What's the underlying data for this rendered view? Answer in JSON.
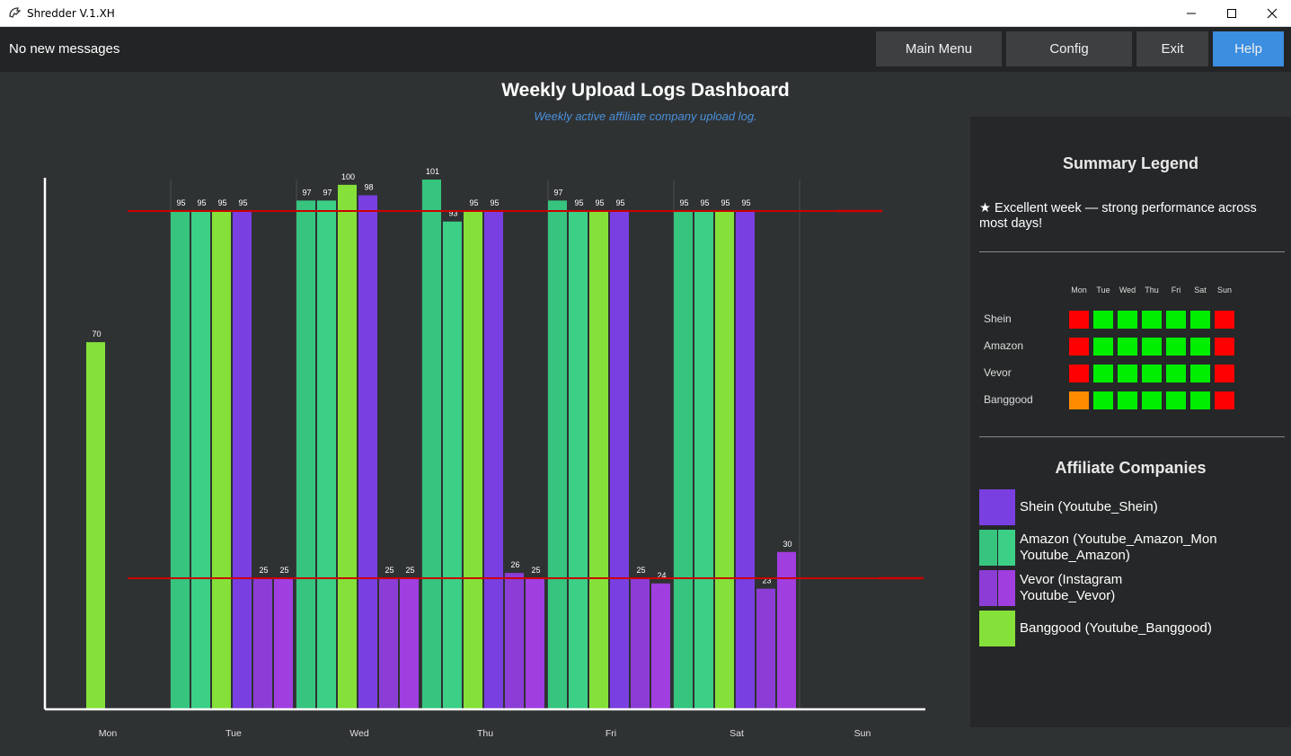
{
  "window": {
    "title": "Shredder V.1.XH"
  },
  "toolbar": {
    "message": "No new messages",
    "buttons": {
      "main_menu": "Main Menu",
      "config": "Config",
      "exit": "Exit",
      "help": "Help"
    },
    "help_color": "#3b8ee0"
  },
  "dashboard": {
    "title": "Weekly Upload Logs Dashboard",
    "subtitle": "Weekly active affiliate company upload log."
  },
  "chart_data": {
    "type": "bar",
    "categories": [
      "Mon",
      "Tue",
      "Wed",
      "Thu",
      "Fri",
      "Sat",
      "Sun"
    ],
    "ylim": [
      0,
      101
    ],
    "reference_lines": [
      95,
      25
    ],
    "reference_line_color": "#cc0000",
    "series": [
      {
        "color": "#36c47e",
        "values": [
          null,
          95,
          97,
          101,
          97,
          95,
          null
        ]
      },
      {
        "color": "#3ccf86",
        "values": [
          null,
          95,
          97,
          93,
          95,
          95,
          null
        ]
      },
      {
        "color": "#86e03a",
        "values": [
          70,
          95,
          100,
          95,
          95,
          95,
          null
        ]
      },
      {
        "color": "#7a3fe0",
        "values": [
          null,
          95,
          98,
          95,
          95,
          95,
          null
        ]
      },
      {
        "color": "#8c3dd6",
        "values": [
          null,
          25,
          25,
          26,
          25,
          23,
          null
        ]
      },
      {
        "color": "#a03ee0",
        "values": [
          null,
          25,
          25,
          25,
          24,
          30,
          null
        ]
      }
    ]
  },
  "summary": {
    "title": "Summary Legend",
    "note": "★ Excellent week — strong performance across most days!",
    "days": [
      "Mon",
      "Tue",
      "Wed",
      "Thu",
      "Fri",
      "Sat",
      "Sun"
    ],
    "rows": [
      {
        "name": "Shein",
        "cells": [
          "#ff0000",
          "#00ee00",
          "#00ee00",
          "#00ee00",
          "#00ee00",
          "#00ee00",
          "#ff0000"
        ]
      },
      {
        "name": "Amazon",
        "cells": [
          "#ff0000",
          "#00ee00",
          "#00ee00",
          "#00ee00",
          "#00ee00",
          "#00ee00",
          "#ff0000"
        ]
      },
      {
        "name": "Vevor",
        "cells": [
          "#ff0000",
          "#00ee00",
          "#00ee00",
          "#00ee00",
          "#00ee00",
          "#00ee00",
          "#ff0000"
        ]
      },
      {
        "name": "Banggood",
        "cells": [
          "#ff8c00",
          "#00ee00",
          "#00ee00",
          "#00ee00",
          "#00ee00",
          "#00ee00",
          "#ff0000"
        ]
      }
    ]
  },
  "affiliates": {
    "title": "Affiliate Companies",
    "items": [
      {
        "label": "Shein (Youtube_Shein)",
        "colors": [
          "#7a3fe0"
        ]
      },
      {
        "label": "Amazon (Youtube_Amazon_Mon\nYoutube_Amazon)",
        "colors": [
          "#36c47e",
          "#3ccf86"
        ]
      },
      {
        "label": "Vevor (Instagram\nYoutube_Vevor)",
        "colors": [
          "#8c3dd6",
          "#a03ee0"
        ]
      },
      {
        "label": "Banggood (Youtube_Banggood)",
        "colors": [
          "#86e03a"
        ]
      }
    ]
  }
}
